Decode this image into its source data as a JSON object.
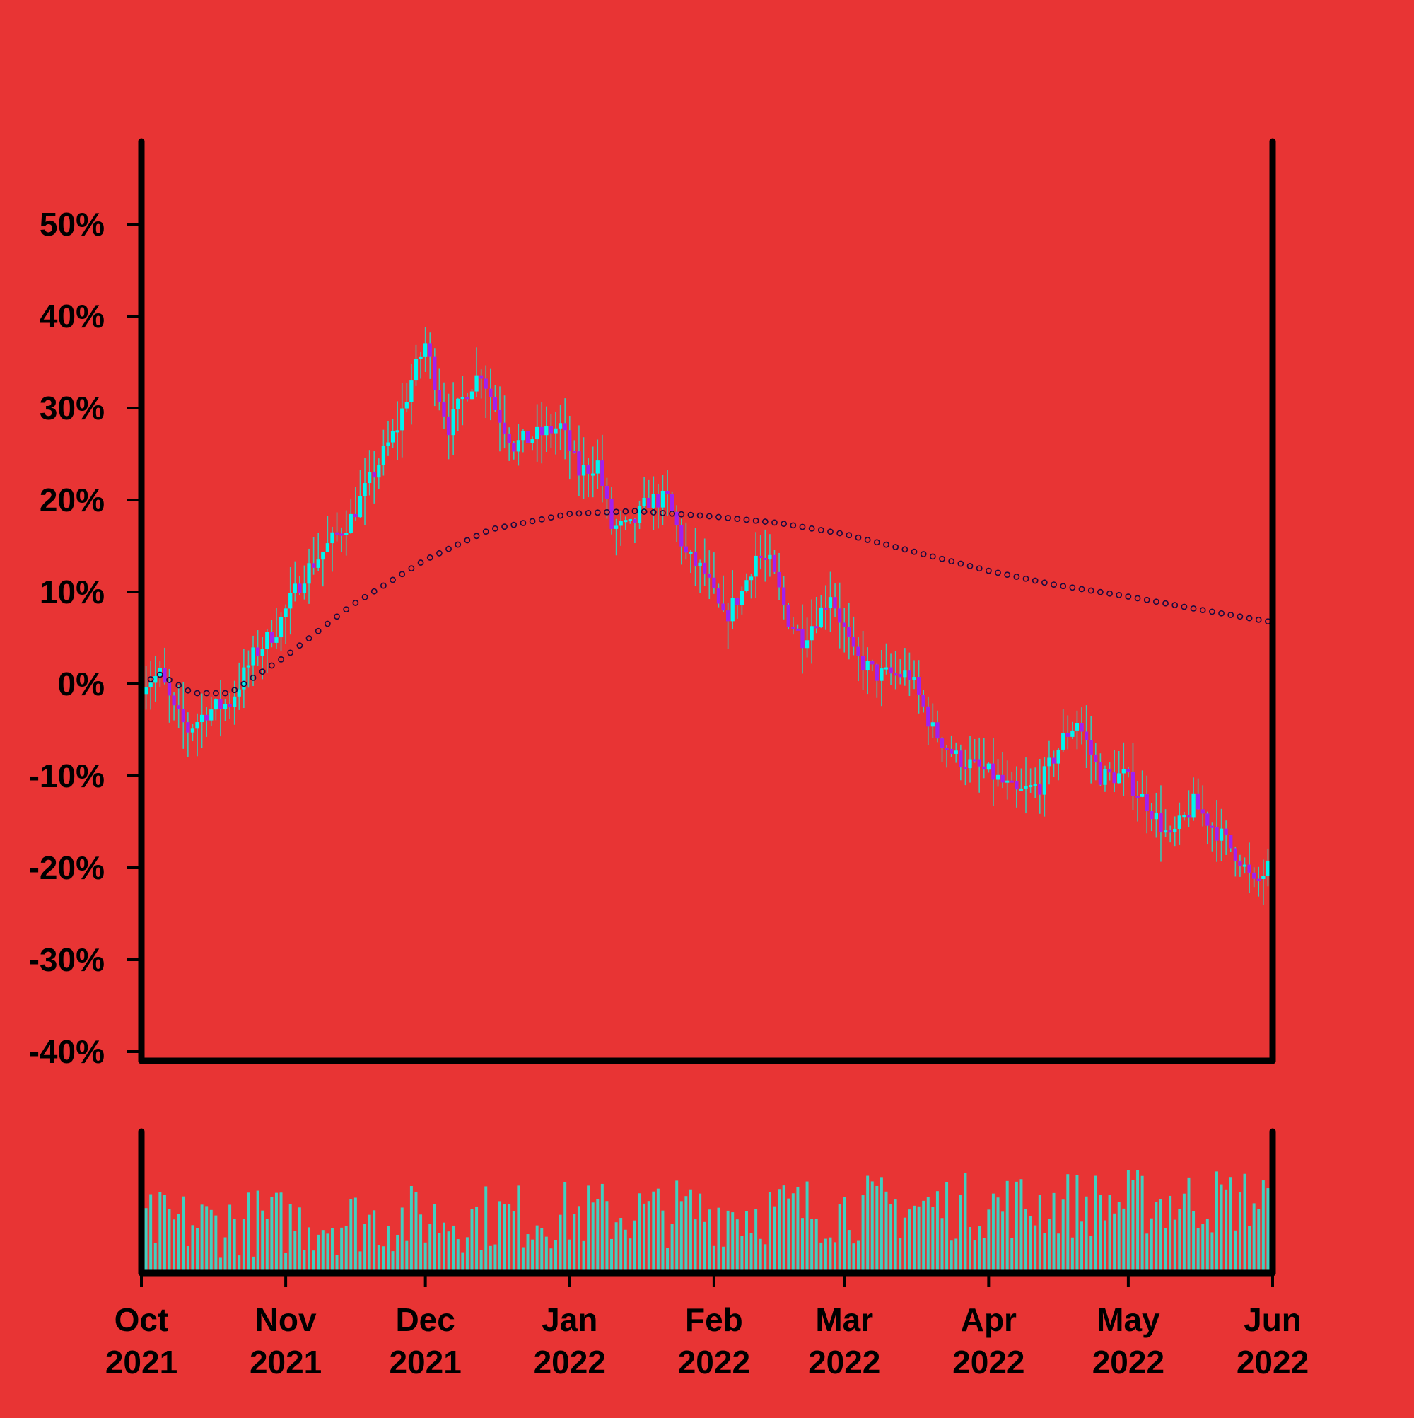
{
  "chart_data": {
    "type": "candlestick",
    "title": "",
    "xlabel": "",
    "ylabel": "",
    "background": "#e83434",
    "colors": {
      "up": "#00f5f0",
      "down": "#a020f0",
      "wick": "#38c9b8",
      "volume": "#40d0c0",
      "moving_average": "#1a0a40",
      "axis": "#000000"
    },
    "date_range": [
      "2021-10-01",
      "2022-05-31"
    ],
    "x_tick_labels": [
      {
        "month": "Oct",
        "year": "2021",
        "date": "2021-10-01"
      },
      {
        "month": "Nov",
        "year": "2021",
        "date": "2021-11-01"
      },
      {
        "month": "Dec",
        "year": "2021",
        "date": "2021-12-01"
      },
      {
        "month": "Jan",
        "year": "2022",
        "date": "2022-01-01"
      },
      {
        "month": "Feb",
        "year": "2022",
        "date": "2022-02-01"
      },
      {
        "month": "Mar",
        "year": "2022",
        "date": "2022-03-01"
      },
      {
        "month": "Apr",
        "year": "2022",
        "date": "2022-04-01"
      },
      {
        "month": "May",
        "year": "2022",
        "date": "2022-05-01"
      },
      {
        "month": "Jun",
        "year": "2022",
        "date": "2022-06-01"
      }
    ],
    "y_ticks": [
      {
        "value": 50,
        "label": "50%"
      },
      {
        "value": 40,
        "label": "40%"
      },
      {
        "value": 30,
        "label": "30%"
      },
      {
        "value": 20,
        "label": "20%"
      },
      {
        "value": 10,
        "label": "10%"
      },
      {
        "value": 0,
        "label": "0%"
      },
      {
        "value": -10,
        "label": "-10%"
      },
      {
        "value": -20,
        "label": "-20%"
      },
      {
        "value": -30,
        "label": "-30%"
      },
      {
        "value": -40,
        "label": "-40%"
      }
    ],
    "ylim": [
      -41,
      59
    ],
    "y_unit": "%",
    "price_path": [
      [
        "2021-10-01",
        0
      ],
      [
        "2021-10-05",
        1
      ],
      [
        "2021-10-08",
        -3
      ],
      [
        "2021-10-11",
        -5
      ],
      [
        "2021-10-15",
        -3
      ],
      [
        "2021-10-20",
        -2
      ],
      [
        "2021-10-25",
        3
      ],
      [
        "2021-10-30",
        6
      ],
      [
        "2021-11-05",
        12
      ],
      [
        "2021-11-10",
        15
      ],
      [
        "2021-11-15",
        18
      ],
      [
        "2021-11-20",
        23
      ],
      [
        "2021-11-25",
        28
      ],
      [
        "2021-11-28",
        33
      ],
      [
        "2021-12-01",
        37
      ],
      [
        "2021-12-03",
        33
      ],
      [
        "2021-12-06",
        28
      ],
      [
        "2021-12-10",
        32
      ],
      [
        "2021-12-13",
        34
      ],
      [
        "2021-12-16",
        30
      ],
      [
        "2021-12-20",
        26
      ],
      [
        "2021-12-25",
        27
      ],
      [
        "2021-12-30",
        28
      ],
      [
        "2022-01-03",
        23
      ],
      [
        "2022-01-07",
        24
      ],
      [
        "2022-01-10",
        17
      ],
      [
        "2022-01-14",
        17
      ],
      [
        "2022-01-18",
        20
      ],
      [
        "2022-01-22",
        20
      ],
      [
        "2022-01-26",
        14
      ],
      [
        "2022-01-30",
        12
      ],
      [
        "2022-02-03",
        7
      ],
      [
        "2022-02-07",
        10
      ],
      [
        "2022-02-10",
        14
      ],
      [
        "2022-02-13",
        13
      ],
      [
        "2022-02-17",
        7
      ],
      [
        "2022-02-20",
        5
      ],
      [
        "2022-02-24",
        8
      ],
      [
        "2022-02-26",
        10
      ],
      [
        "2022-03-03",
        3
      ],
      [
        "2022-03-08",
        1
      ],
      [
        "2022-03-15",
        1
      ],
      [
        "2022-03-20",
        -5
      ],
      [
        "2022-03-25",
        -8
      ],
      [
        "2022-04-02",
        -10
      ],
      [
        "2022-04-07",
        -12
      ],
      [
        "2022-04-12",
        -11
      ],
      [
        "2022-04-17",
        -6
      ],
      [
        "2022-04-20",
        -4
      ],
      [
        "2022-04-25",
        -10
      ],
      [
        "2022-04-30",
        -10
      ],
      [
        "2022-05-05",
        -13
      ],
      [
        "2022-05-10",
        -17
      ],
      [
        "2022-05-15",
        -13
      ],
      [
        "2022-05-20",
        -16
      ],
      [
        "2022-05-25",
        -19
      ],
      [
        "2022-05-28",
        -22
      ],
      [
        "2022-05-31",
        -20
      ]
    ],
    "moving_average_path": [
      [
        "2021-10-01",
        0
      ],
      [
        "2021-10-05",
        1
      ],
      [
        "2021-10-12",
        -1
      ],
      [
        "2021-10-20",
        -1
      ],
      [
        "2021-11-01",
        3
      ],
      [
        "2021-11-15",
        8.5
      ],
      [
        "2021-12-01",
        13.5
      ],
      [
        "2021-12-15",
        16.8
      ],
      [
        "2022-01-01",
        18.5
      ],
      [
        "2022-01-15",
        18.8
      ],
      [
        "2022-02-01",
        18.2
      ],
      [
        "2022-02-15",
        17.5
      ],
      [
        "2022-03-01",
        16.3
      ],
      [
        "2022-03-15",
        14.5
      ],
      [
        "2022-04-01",
        12.3
      ],
      [
        "2022-04-15",
        10.8
      ],
      [
        "2022-05-01",
        9.5
      ],
      [
        "2022-05-15",
        8.2
      ],
      [
        "2022-05-31",
        6.8
      ]
    ],
    "volume_range": [
      0,
      100
    ],
    "volume_mean": 35,
    "grid": false,
    "legend": "none"
  }
}
